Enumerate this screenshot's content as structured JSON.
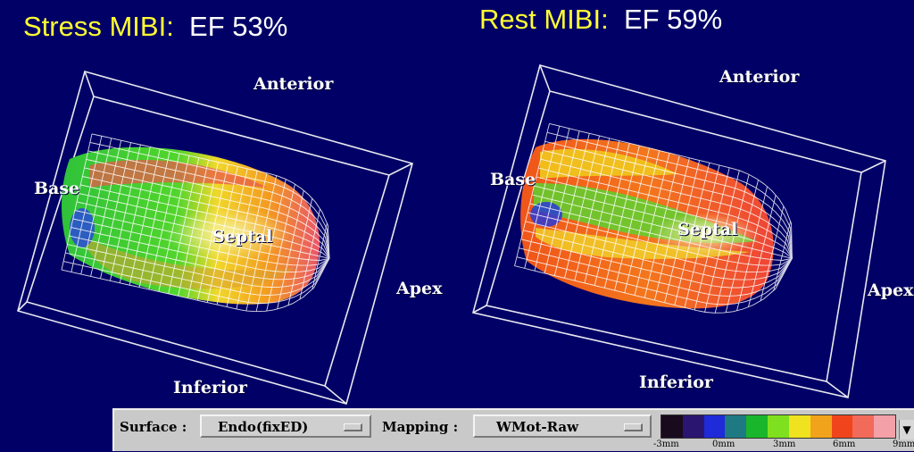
{
  "panels": {
    "left": {
      "modality": "Stress MIBI:",
      "ef": "EF 53%",
      "labels": {
        "anterior": "Anterior",
        "base": "Base",
        "septal": "Septal",
        "apex": "Apex",
        "inferior": "Inferior"
      }
    },
    "right": {
      "modality": "Rest MIBI:",
      "ef": "EF 59%",
      "labels": {
        "anterior": "Anterior",
        "base": "Base",
        "septal": "Septal",
        "apex": "Apex",
        "inferior": "Inferior"
      }
    }
  },
  "toolbar": {
    "surface_label": "Surface :",
    "surface_value": "Endo(fixED)",
    "mapping_label": "Mapping :",
    "mapping_value": "WMot-Raw",
    "scale_colors": [
      "#1a0a1e",
      "#2a1570",
      "#1f2ad8",
      "#1d7a83",
      "#19b52a",
      "#7fe01f",
      "#f0e21e",
      "#f2a31c",
      "#f0451c",
      "#f26a5a",
      "#f3a0a8"
    ],
    "scale_ticks": [
      "-3mm",
      "0mm",
      "3mm",
      "6mm",
      "9mm"
    ]
  },
  "colors": {
    "background": "#000066",
    "title_modality": "#ffff33",
    "title_ef": "#ffffff"
  }
}
